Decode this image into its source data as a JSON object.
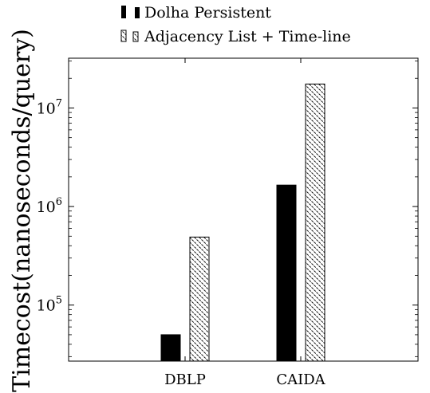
{
  "chart_data": {
    "type": "bar",
    "categories": [
      "DBLP",
      "CAIDA"
    ],
    "series": [
      {
        "name": "Dolha Persistent",
        "values": [
          50000,
          1650000
        ],
        "fill": "#000000"
      },
      {
        "name": "Adjacency List + Time-line",
        "values": [
          490000,
          17500000
        ],
        "fill": "pattern-dashed"
      }
    ],
    "ylabel": "Timecost(nanoseconds/query)",
    "xlabel": "",
    "yscale": "log",
    "ylim": [
      27000,
      32000000
    ],
    "yticks": [
      {
        "value": 100000,
        "base": "10",
        "exp": "5"
      },
      {
        "value": 1000000,
        "base": "10",
        "exp": "6"
      },
      {
        "value": 10000000,
        "base": "10",
        "exp": "7"
      }
    ],
    "grid": false,
    "legend_position": "top-center"
  }
}
